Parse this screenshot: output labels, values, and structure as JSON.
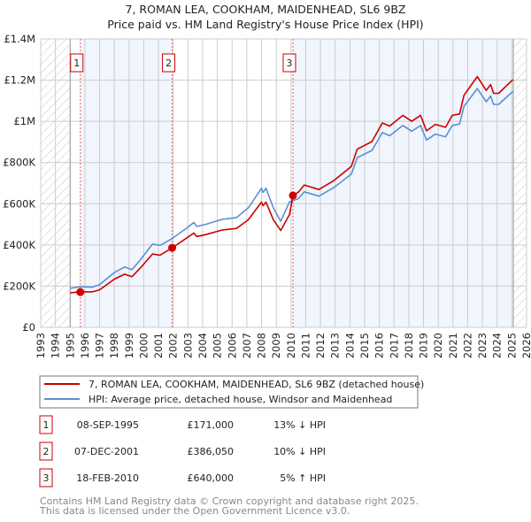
{
  "chart_data": {
    "type": "line",
    "title": "7, ROMAN LEA, COOKHAM, MAIDENHEAD, SL6 9BZ",
    "subtitle": "Price paid vs. HM Land Registry's House Price Index (HPI)",
    "xlim": [
      1993,
      2026
    ],
    "ylim": [
      0,
      1400000
    ],
    "x_ticks": [
      1993,
      1994,
      1995,
      1996,
      1997,
      1998,
      1999,
      2000,
      2001,
      2002,
      2003,
      2004,
      2005,
      2006,
      2007,
      2008,
      2009,
      2010,
      2011,
      2012,
      2013,
      2014,
      2015,
      2016,
      2017,
      2018,
      2019,
      2020,
      2021,
      2022,
      2023,
      2024,
      2025,
      2026
    ],
    "y_ticks": [
      {
        "value": 0,
        "label": "£0"
      },
      {
        "value": 200000,
        "label": "£200K"
      },
      {
        "value": 400000,
        "label": "£400K"
      },
      {
        "value": 600000,
        "label": "£600K"
      },
      {
        "value": 800000,
        "label": "£800K"
      },
      {
        "value": 1000000,
        "label": "£1M"
      },
      {
        "value": 1200000,
        "label": "£1.2M"
      },
      {
        "value": 1400000,
        "label": "£1.4M"
      }
    ],
    "grid": true,
    "data_range": [
      1995.0,
      2025.1
    ],
    "series": [
      {
        "name": "7, ROMAN LEA, COOKHAM, MAIDENHEAD, SL6 9BZ (detached house)",
        "color": "#cc0000",
        "x": [
          1995.0,
          1995.7,
          1996.5,
          1997.0,
          1998.0,
          1998.7,
          1999.2,
          1999.7,
          2000.6,
          2001.1,
          2001.93,
          2002.9,
          2003.4,
          2003.6,
          2004.2,
          2005.3,
          2006.3,
          2007.1,
          2008.0,
          2008.1,
          2008.3,
          2008.8,
          2009.3,
          2009.9,
          2010.13,
          2010.5,
          2010.9,
          2011.9,
          2012.9,
          2014.1,
          2014.5,
          2015.5,
          2016.2,
          2016.7,
          2017.6,
          2018.2,
          2018.8,
          2019.2,
          2019.8,
          2020.5,
          2020.95,
          2021.45,
          2021.75,
          2022.65,
          2023.26,
          2023.56,
          2023.76,
          2024.1,
          2025.07
        ],
        "values": [
          167000,
          173000,
          172000,
          182000,
          234000,
          258000,
          246000,
          283000,
          356000,
          350000,
          386050,
          433000,
          458000,
          441000,
          450000,
          472000,
          480000,
          522000,
          608000,
          590000,
          608000,
          522000,
          470000,
          549000,
          640000,
          656000,
          691000,
          669000,
          712000,
          781000,
          865000,
          902000,
          992000,
          977000,
          1029000,
          1000000,
          1029000,
          954000,
          985000,
          971000,
          1029000,
          1036000,
          1127000,
          1217000,
          1150000,
          1179000,
          1136000,
          1136000,
          1202000
        ]
      },
      {
        "name": "HPI: Average price, detached house, Windsor and Maidenhead",
        "color": "#5b8fd4",
        "x": [
          1995.0,
          1995.7,
          1996.5,
          1997.0,
          1998.0,
          1998.7,
          1999.2,
          1999.7,
          2000.6,
          2001.1,
          2001.9,
          2002.9,
          2003.4,
          2003.6,
          2004.2,
          2005.3,
          2006.3,
          2007.1,
          2008.0,
          2008.1,
          2008.3,
          2008.8,
          2009.3,
          2009.9,
          2010.5,
          2010.9,
          2011.9,
          2012.9,
          2014.1,
          2014.5,
          2015.5,
          2016.2,
          2016.7,
          2017.6,
          2018.2,
          2018.8,
          2019.2,
          2019.8,
          2020.5,
          2020.95,
          2021.45,
          2021.75,
          2022.65,
          2023.26,
          2023.56,
          2023.76,
          2024.1,
          2025.07
        ],
        "values": [
          190000,
          197000,
          195000,
          207000,
          266000,
          293000,
          280000,
          322000,
          404000,
          398000,
          430000,
          481000,
          509000,
          490000,
          500000,
          524000,
          533000,
          580000,
          675000,
          655000,
          675000,
          580000,
          515000,
          610000,
          625000,
          658000,
          637000,
          678000,
          744000,
          824000,
          859000,
          945000,
          930000,
          980000,
          952000,
          980000,
          909000,
          938000,
          925000,
          980000,
          987000,
          1073000,
          1159000,
          1095000,
          1123000,
          1082000,
          1082000,
          1145000
        ]
      }
    ],
    "sales": [
      {
        "id": "1",
        "x": 1995.69,
        "date": "08-SEP-1995",
        "price": 171000,
        "price_label": "£171,000",
        "hpi": "13% ↓ HPI"
      },
      {
        "id": "2",
        "x": 2001.93,
        "date": "07-DEC-2001",
        "price": 386050,
        "price_label": "£386,050",
        "hpi": "10% ↓ HPI"
      },
      {
        "id": "3",
        "x": 2010.13,
        "date": "18-FEB-2010",
        "price": 640000,
        "price_label": "£640,000",
        "hpi": "5% ↑ HPI"
      }
    ],
    "legend_placement": "bottom"
  },
  "footer": [
    "Contains HM Land Registry data © Crown copyright and database right 2025.",
    "This data is licensed under the Open Government Licence v3.0."
  ]
}
